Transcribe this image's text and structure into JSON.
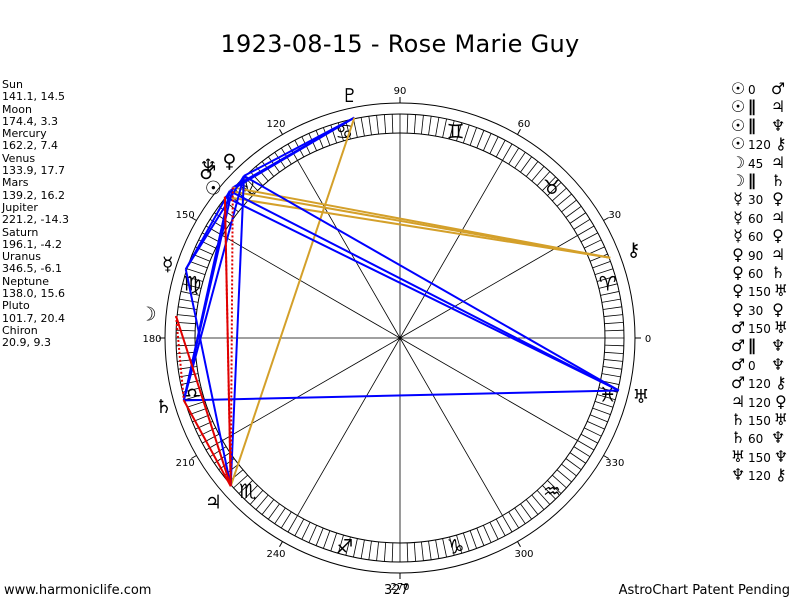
{
  "title": "1923-08-15 - Rose Marie Guy",
  "planets": [
    {
      "name": "Sun",
      "value": "141.1, 14.5",
      "glyph": "☉"
    },
    {
      "name": "Moon",
      "value": "174.4, 3.3",
      "glyph": "☽"
    },
    {
      "name": "Mercury",
      "value": "162.2, 7.4",
      "glyph": "☿"
    },
    {
      "name": "Venus",
      "value": "133.9, 17.7",
      "glyph": "♀"
    },
    {
      "name": "Mars",
      "value": "139.2, 16.2",
      "glyph": "♂"
    },
    {
      "name": "Jupiter",
      "value": "221.2, -14.3",
      "glyph": "♃"
    },
    {
      "name": "Saturn",
      "value": "196.1, -4.2",
      "glyph": "♄"
    },
    {
      "name": "Uranus",
      "value": "346.5, -6.1",
      "glyph": "♅"
    },
    {
      "name": "Neptune",
      "value": "138.0, 15.6",
      "glyph": "♆"
    },
    {
      "name": "Pluto",
      "value": "101.7, 20.4",
      "glyph": "♇"
    },
    {
      "name": "Chiron",
      "value": "20.9, 9.3",
      "glyph": "⚷"
    }
  ],
  "aspects": [
    {
      "p1": "☉",
      "aspect": "0",
      "p2": "♂"
    },
    {
      "p1": "☉",
      "aspect": "∥",
      "p2": "♃"
    },
    {
      "p1": "☉",
      "aspect": "∥",
      "p2": "♆"
    },
    {
      "p1": "☉",
      "aspect": "120",
      "p2": "⚷"
    },
    {
      "p1": "☽",
      "aspect": "45",
      "p2": "♃"
    },
    {
      "p1": "☽",
      "aspect": "∥",
      "p2": "♄"
    },
    {
      "p1": "☿",
      "aspect": "30",
      "p2": "♀"
    },
    {
      "p1": "☿",
      "aspect": "60",
      "p2": "♃"
    },
    {
      "p1": "☿",
      "aspect": "60",
      "p2": "♀"
    },
    {
      "p1": "♀",
      "aspect": "90",
      "p2": "♃"
    },
    {
      "p1": "♀",
      "aspect": "60",
      "p2": "♄"
    },
    {
      "p1": "♀",
      "aspect": "150",
      "p2": "♅"
    },
    {
      "p1": "♀",
      "aspect": "30",
      "p2": "♀"
    },
    {
      "p1": "♂",
      "aspect": "150",
      "p2": "♅"
    },
    {
      "p1": "♂",
      "aspect": "∥",
      "p2": "♆"
    },
    {
      "p1": "♂",
      "aspect": "0",
      "p2": "♆"
    },
    {
      "p1": "♂",
      "aspect": "120",
      "p2": "⚷"
    },
    {
      "p1": "♃",
      "aspect": "120",
      "p2": "♀"
    },
    {
      "p1": "♄",
      "aspect": "150",
      "p2": "♅"
    },
    {
      "p1": "♄",
      "aspect": "60",
      "p2": "♆"
    },
    {
      "p1": "♅",
      "aspect": "150",
      "p2": "♆"
    },
    {
      "p1": "♆",
      "aspect": "120",
      "p2": "⚷"
    }
  ],
  "wheel": {
    "degree_labels": [
      "0",
      "30",
      "60",
      "90",
      "120",
      "150",
      "180",
      "210",
      "240",
      "270",
      "300",
      "330"
    ],
    "mc_degree": "327",
    "signs": [
      {
        "glyph": "♈",
        "start": 0
      },
      {
        "glyph": "♉",
        "start": 30
      },
      {
        "glyph": "♊",
        "start": 60
      },
      {
        "glyph": "♋",
        "start": 90
      },
      {
        "glyph": "♌",
        "start": 120
      },
      {
        "glyph": "♍",
        "start": 150
      },
      {
        "glyph": "♎",
        "start": 180
      },
      {
        "glyph": "♏",
        "start": 210
      },
      {
        "glyph": "♐",
        "start": 240
      },
      {
        "glyph": "♑",
        "start": 270
      },
      {
        "glyph": "♒",
        "start": 300
      },
      {
        "glyph": "♓",
        "start": 330
      }
    ],
    "colors": {
      "line": "#000000",
      "blue": "#0000ff",
      "red": "#e00000",
      "gold": "#d4a02a"
    }
  },
  "footer": {
    "site": "www.harmoniclife.com",
    "mc": "327",
    "patent": "AstroChart Patent Pending"
  }
}
